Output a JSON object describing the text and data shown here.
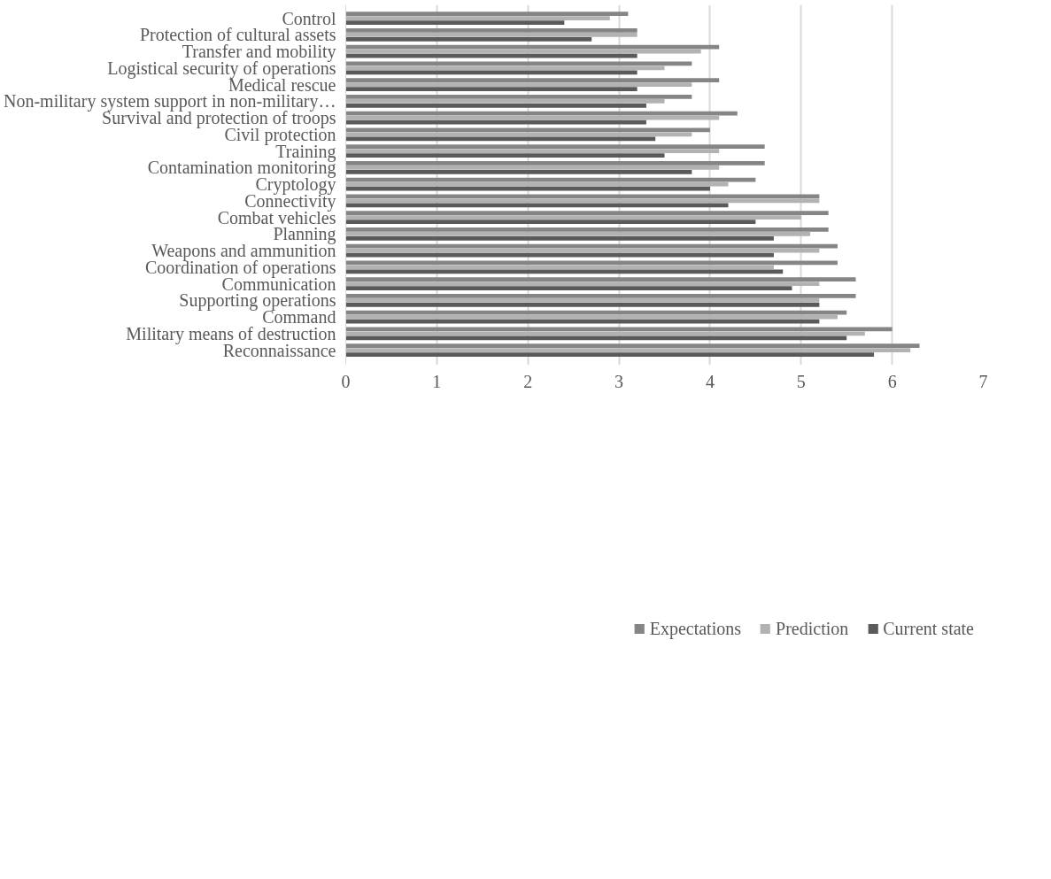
{
  "chart_data": {
    "type": "bar",
    "orientation": "horizontal",
    "categories": [
      "Control",
      "Protection of cultural assets",
      "Transfer and mobility",
      "Logistical security of operations",
      "Medical rescue",
      "Non-military system support in non-military…",
      "Survival and protection of troops",
      "Civil protection",
      "Training",
      "Contamination monitoring",
      "Cryptology",
      "Connectivity",
      "Combat vehicles",
      "Planning",
      "Weapons and ammunition",
      "Coordination of operations",
      "Communication",
      "Supporting operations",
      "Command",
      "Military means of destruction",
      "Reconnaissance"
    ],
    "series": [
      {
        "name": "Expectations",
        "color": "#858585",
        "values": [
          3.1,
          3.2,
          4.1,
          3.8,
          4.1,
          3.8,
          4.3,
          4.0,
          4.6,
          4.6,
          4.5,
          5.2,
          5.3,
          5.3,
          5.4,
          5.4,
          5.6,
          5.6,
          5.5,
          6.0,
          6.3
        ]
      },
      {
        "name": "Prediction",
        "color": "#b2b2b2",
        "values": [
          2.9,
          3.2,
          3.9,
          3.5,
          3.8,
          3.5,
          4.1,
          3.8,
          4.1,
          4.1,
          4.2,
          5.2,
          5.0,
          5.1,
          5.2,
          4.7,
          5.2,
          5.2,
          5.4,
          5.7,
          6.2
        ]
      },
      {
        "name": "Current state",
        "color": "#5a5a5a",
        "values": [
          2.4,
          2.7,
          3.2,
          3.2,
          3.2,
          3.3,
          3.3,
          3.4,
          3.5,
          3.8,
          4.0,
          4.2,
          4.5,
          4.7,
          4.7,
          4.8,
          4.9,
          5.2,
          5.2,
          5.5,
          5.8
        ]
      }
    ],
    "xlim": [
      0,
      7
    ],
    "xticks": [
      0,
      1,
      2,
      3,
      4,
      5,
      6,
      7
    ],
    "grid": "x",
    "legend": "bottom"
  }
}
